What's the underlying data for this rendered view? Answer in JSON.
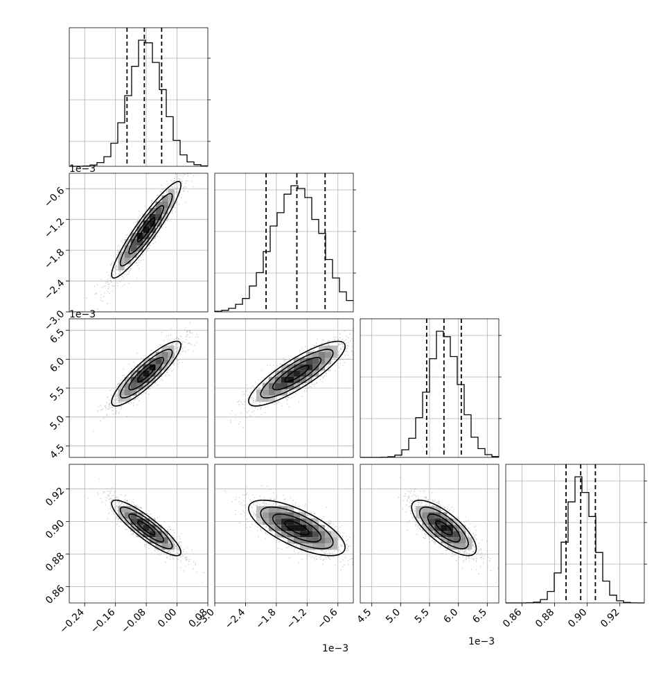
{
  "chart_data": {
    "type": "corner",
    "title": "",
    "params": [
      {
        "xlim": [
          -0.28,
          0.08
        ],
        "xticks": [
          "−0.24",
          "−0.16",
          "−0.08",
          "0.00",
          "0.08"
        ],
        "xtickvals": [
          -0.24,
          -0.16,
          -0.08,
          0.0,
          0.08
        ],
        "offset": ""
      },
      {
        "xlim": [
          -3.0,
          -0.3
        ],
        "xticks": [
          "−3.0",
          "−2.4",
          "−1.8",
          "−1.2",
          "−0.6"
        ],
        "xtickvals": [
          -3.0,
          -2.4,
          -1.8,
          -1.2,
          -0.6
        ],
        "offset": "1e−3",
        "yticks": [
          "−0.6",
          "−1.2",
          "−1.8",
          "−2.4",
          "−3.0"
        ],
        "ytickvals": [
          -0.6,
          -1.2,
          -1.8,
          -2.4,
          -3.0
        ],
        "yoffset": "1e−3"
      },
      {
        "xlim": [
          4.3,
          6.7
        ],
        "xticks": [
          "4.5",
          "5.0",
          "5.5",
          "6.0",
          "6.5"
        ],
        "xtickvals": [
          4.5,
          5.0,
          5.5,
          6.0,
          6.5
        ],
        "offset": "1e−3",
        "yticks": [
          "6.5",
          "6.0",
          "5.5",
          "5.0",
          "4.5"
        ],
        "ytickvals": [
          6.5,
          6.0,
          5.5,
          5.0,
          4.5
        ],
        "yoffset": "1e−3"
      },
      {
        "xlim": [
          0.85,
          0.935
        ],
        "xticks": [
          "0.86",
          "0.88",
          "0.90",
          "0.92"
        ],
        "xtickvals": [
          0.86,
          0.88,
          0.9,
          0.92
        ],
        "offset": "",
        "yticks": [
          "0.92",
          "0.90",
          "0.88",
          "0.86"
        ],
        "ytickvals": [
          0.92,
          0.9,
          0.88,
          0.86
        ]
      }
    ],
    "histograms": [
      {
        "mean": -0.08,
        "sd": 0.045,
        "quantiles": [
          -0.13,
          -0.085,
          -0.04
        ]
      },
      {
        "mean": -1.4,
        "sd": 0.47,
        "quantiles": [
          -2.0,
          -1.4,
          -0.85
        ]
      },
      {
        "mean": 5.75,
        "sd": 0.28,
        "quantiles": [
          5.45,
          5.75,
          6.05
        ]
      },
      {
        "mean": 0.896,
        "sd": 0.0085,
        "quantiles": [
          0.887,
          0.896,
          0.905
        ]
      }
    ],
    "correlations": {
      "1-0": 0.93,
      "2-0": 0.88,
      "2-1": 0.85,
      "3-0": -0.88,
      "3-1": -0.7,
      "3-2": -0.75
    },
    "grid": true
  }
}
